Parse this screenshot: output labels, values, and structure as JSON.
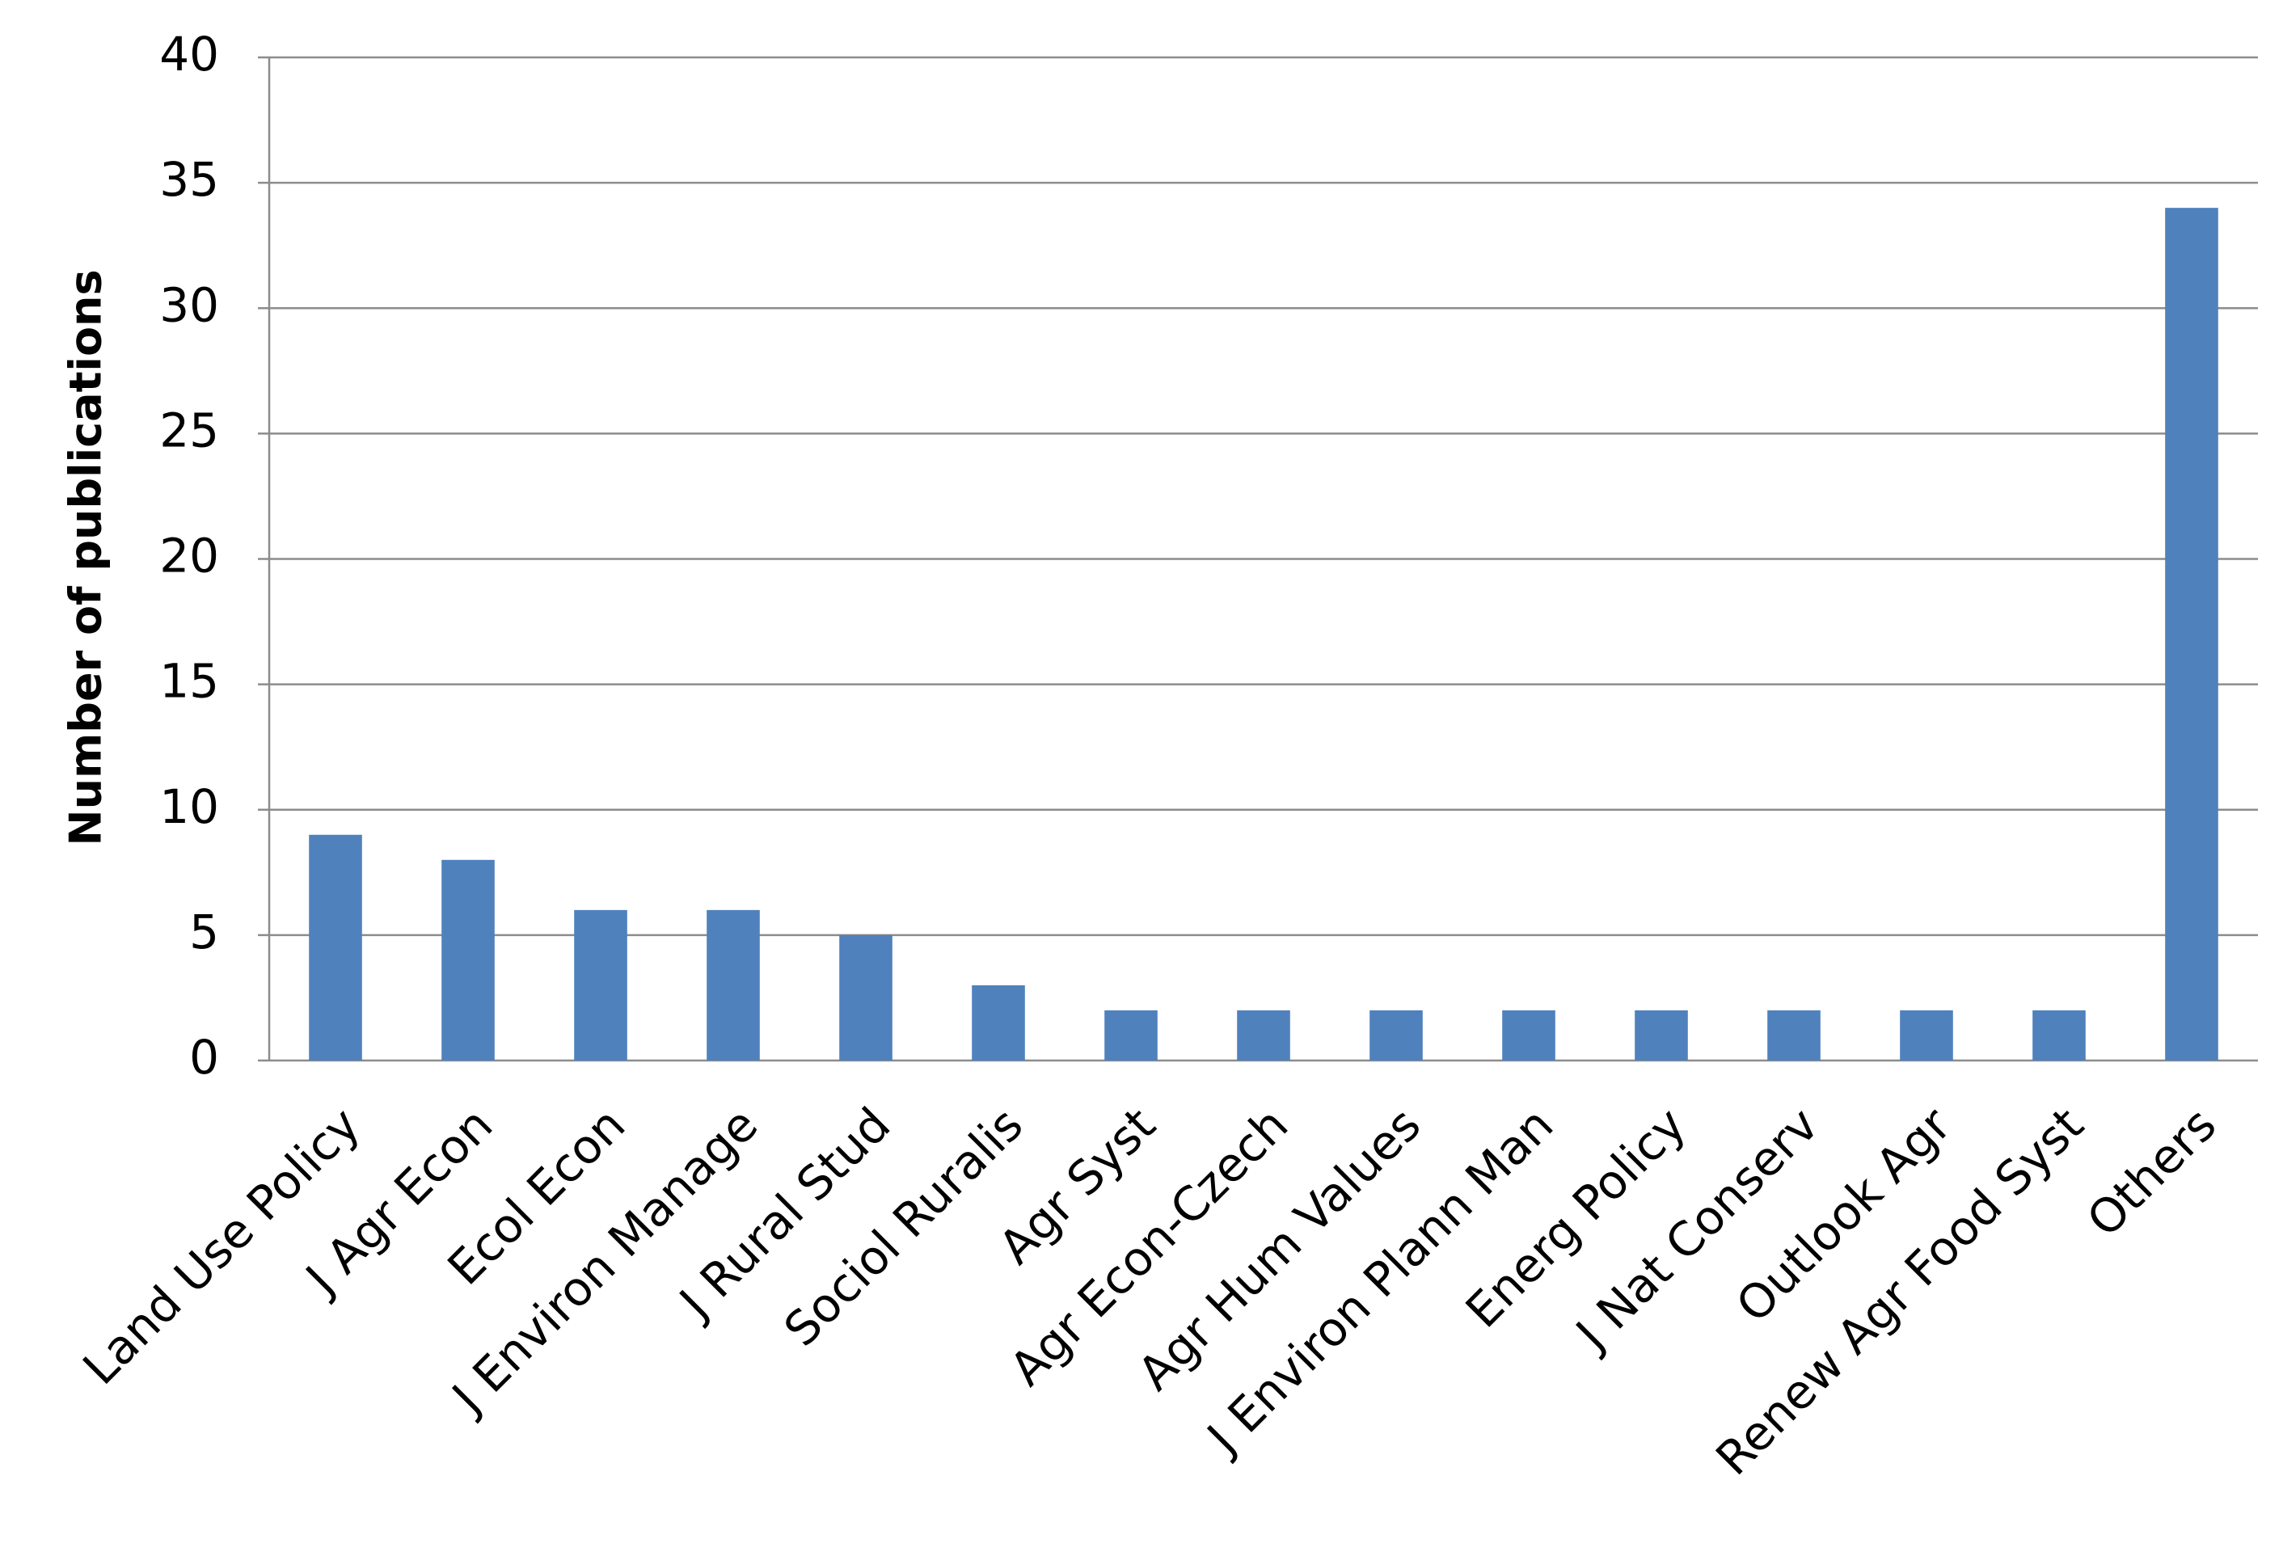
{
  "chart_data": {
    "type": "bar",
    "y_label": "Number of publications",
    "categories": [
      "Land Use Policy",
      "J Agr Econ",
      "Ecol Econ",
      "J Environ Manage",
      "J Rural Stud",
      "Sociol Ruralis",
      "Agr Syst",
      "Agr Econ-Czech",
      "Agr Hum Values",
      "J Environ Plann Man",
      "Energ Policy",
      "J Nat Conserv",
      "Outlook Agr",
      "Renew Agr Food Syst",
      "Others"
    ],
    "values": [
      9,
      8,
      6,
      6,
      5,
      3,
      2,
      2,
      2,
      2,
      2,
      2,
      2,
      2,
      34
    ],
    "color": "#4f81bd",
    "ylim": [
      0,
      40
    ],
    "yticks": [
      0,
      5,
      10,
      15,
      20,
      25,
      30,
      35,
      40
    ],
    "grid": true
  }
}
